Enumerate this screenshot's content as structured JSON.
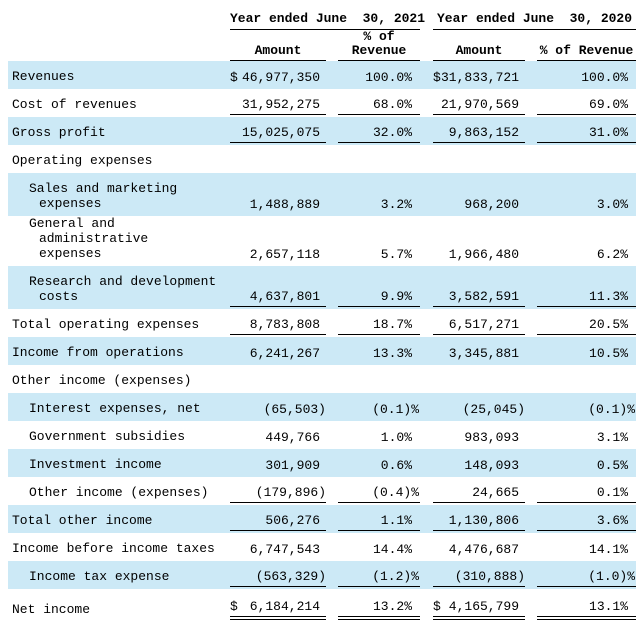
{
  "colors": {
    "row_highlight": "#cce9f6",
    "text": "#000000",
    "rule": "#000000"
  },
  "table": {
    "header": {
      "group_2021": "Year ended June  30, 2021",
      "group_2020": "Year ended June  30, 2020",
      "amount_2021": "Amount",
      "pct_2021": "% of\nRevenue",
      "amount_2020": "Amount",
      "pct_2020": "% of Revenue"
    },
    "rows": [
      {
        "label": "Revenues",
        "highlight": true,
        "dollar_sign": "$",
        "amount_2021": "46,977,350",
        "pct_2021": "100.0%",
        "amount_2020": "31,833,721",
        "pct_2020": "100.0%"
      },
      {
        "label": "Cost of revenues",
        "underline": true,
        "amount_2021": "31,952,275",
        "pct_2021": "68.0%",
        "amount_2020": "21,970,569",
        "pct_2020": "69.0%"
      },
      {
        "label": "Gross profit",
        "highlight": true,
        "underline": true,
        "amount_2021": "15,025,075",
        "pct_2021": "32.0%",
        "amount_2020": "9,863,152",
        "pct_2020": "31.0%"
      },
      {
        "label": "Operating expenses",
        "section": true
      },
      {
        "label": "Sales and marketing\nexpenses",
        "indent": true,
        "two_line": true,
        "highlight": true,
        "amount_2021": "1,488,889",
        "pct_2021": "3.2%",
        "amount_2020": "968,200",
        "pct_2020": "3.0%"
      },
      {
        "label": "General and administrative\nexpenses",
        "indent": true,
        "two_line": true,
        "amount_2021": "2,657,118",
        "pct_2021": "5.7%",
        "amount_2020": "1,966,480",
        "pct_2020": "6.2%"
      },
      {
        "label": "Research and development\ncosts",
        "indent": true,
        "two_line": true,
        "highlight": true,
        "underline": true,
        "amount_2021": "4,637,801",
        "pct_2021": "9.9%",
        "amount_2020": "3,582,591",
        "pct_2020": "11.3%"
      },
      {
        "label": "Total operating expenses",
        "underline": true,
        "amount_2021": "8,783,808",
        "pct_2021": "18.7%",
        "amount_2020": "6,517,271",
        "pct_2020": "20.5%"
      },
      {
        "label": "Income from operations",
        "highlight": true,
        "amount_2021": "6,241,267",
        "pct_2021": "13.3%",
        "amount_2020": "3,345,881",
        "pct_2020": "10.5%"
      },
      {
        "label": "Other income (expenses)",
        "section": true
      },
      {
        "label": "Interest expenses, net",
        "indent": true,
        "highlight": true,
        "amount_2021": "(65,503)",
        "pct_2021": "(0.1)%",
        "amount_2020": "(25,045)",
        "pct_2020": "(0.1)%"
      },
      {
        "label": "Government subsidies",
        "indent": true,
        "amount_2021": "449,766",
        "pct_2021": "1.0%",
        "amount_2020": "983,093",
        "pct_2020": "3.1%"
      },
      {
        "label": "Investment income",
        "indent": true,
        "highlight": true,
        "amount_2021": "301,909",
        "pct_2021": "0.6%",
        "amount_2020": "148,093",
        "pct_2020": "0.5%"
      },
      {
        "label": "Other income (expenses)",
        "indent": true,
        "underline": true,
        "amount_2021": "(179,896)",
        "pct_2021": "(0.4)%",
        "amount_2020": "24,665",
        "pct_2020": "0.1%"
      },
      {
        "label": "Total other income",
        "highlight": true,
        "underline": true,
        "amount_2021": "506,276",
        "pct_2021": "1.1%",
        "amount_2020": "1,130,806",
        "pct_2020": "3.6%"
      },
      {
        "label": "Income before income taxes",
        "amount_2021": "6,747,543",
        "pct_2021": "14.4%",
        "amount_2020": "4,476,687",
        "pct_2020": "14.1%"
      },
      {
        "label": "Income tax expense",
        "indent": true,
        "highlight": true,
        "underline": true,
        "amount_2021": "(563,329)",
        "pct_2021": "(1.2)%",
        "amount_2020": "(310,888)",
        "pct_2020": "(1.0)%"
      },
      {
        "label": "Net income",
        "double_underline": true,
        "dollar_sign": "$",
        "amount_2021": "6,184,214",
        "pct_2021": "13.2%",
        "amount_2020": "4,165,799",
        "pct_2020": "13.1%"
      }
    ]
  }
}
